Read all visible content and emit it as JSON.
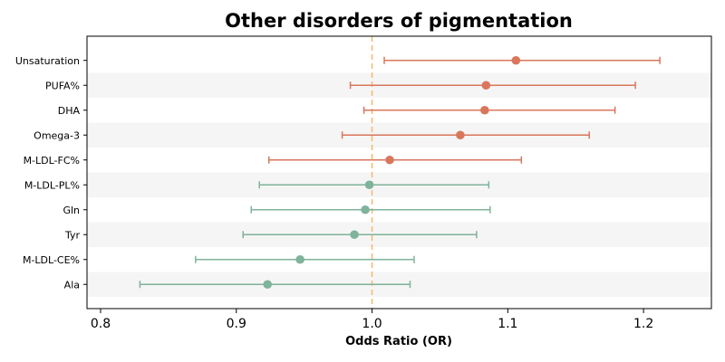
{
  "chart_data": {
    "type": "forest",
    "title": "Other disorders of pigmentation",
    "xlabel": "Odds Ratio (OR)",
    "xlim": [
      0.79,
      1.25
    ],
    "xticks": [
      0.8,
      0.9,
      1.0,
      1.1,
      1.2
    ],
    "xtick_labels": [
      "0.8",
      "0.9",
      "1.0",
      "1.1",
      "1.2"
    ],
    "reference_line": 1.0,
    "colors": {
      "positive": "#d9775c",
      "negative": "#7fb39b",
      "reference": "#f5b96a",
      "band": "#f5f5f5"
    },
    "rows": [
      {
        "label": "Unsaturation",
        "or": 1.106,
        "lo": 1.009,
        "hi": 1.212,
        "group": "positive"
      },
      {
        "label": "PUFA%",
        "or": 1.084,
        "lo": 0.984,
        "hi": 1.194,
        "group": "positive"
      },
      {
        "label": "DHA",
        "or": 1.083,
        "lo": 0.994,
        "hi": 1.179,
        "group": "positive"
      },
      {
        "label": "Omega-3",
        "or": 1.065,
        "lo": 0.978,
        "hi": 1.16,
        "group": "positive"
      },
      {
        "label": "M-LDL-FC%",
        "or": 1.013,
        "lo": 0.924,
        "hi": 1.11,
        "group": "positive"
      },
      {
        "label": "M-LDL-PL%",
        "or": 0.998,
        "lo": 0.917,
        "hi": 1.086,
        "group": "negative"
      },
      {
        "label": "Gln",
        "or": 0.995,
        "lo": 0.911,
        "hi": 1.087,
        "group": "negative"
      },
      {
        "label": "Tyr",
        "or": 0.987,
        "lo": 0.905,
        "hi": 1.077,
        "group": "negative"
      },
      {
        "label": "M-LDL-CE%",
        "or": 0.947,
        "lo": 0.87,
        "hi": 1.031,
        "group": "negative"
      },
      {
        "label": "Ala",
        "or": 0.923,
        "lo": 0.829,
        "hi": 1.028,
        "group": "negative"
      }
    ]
  }
}
